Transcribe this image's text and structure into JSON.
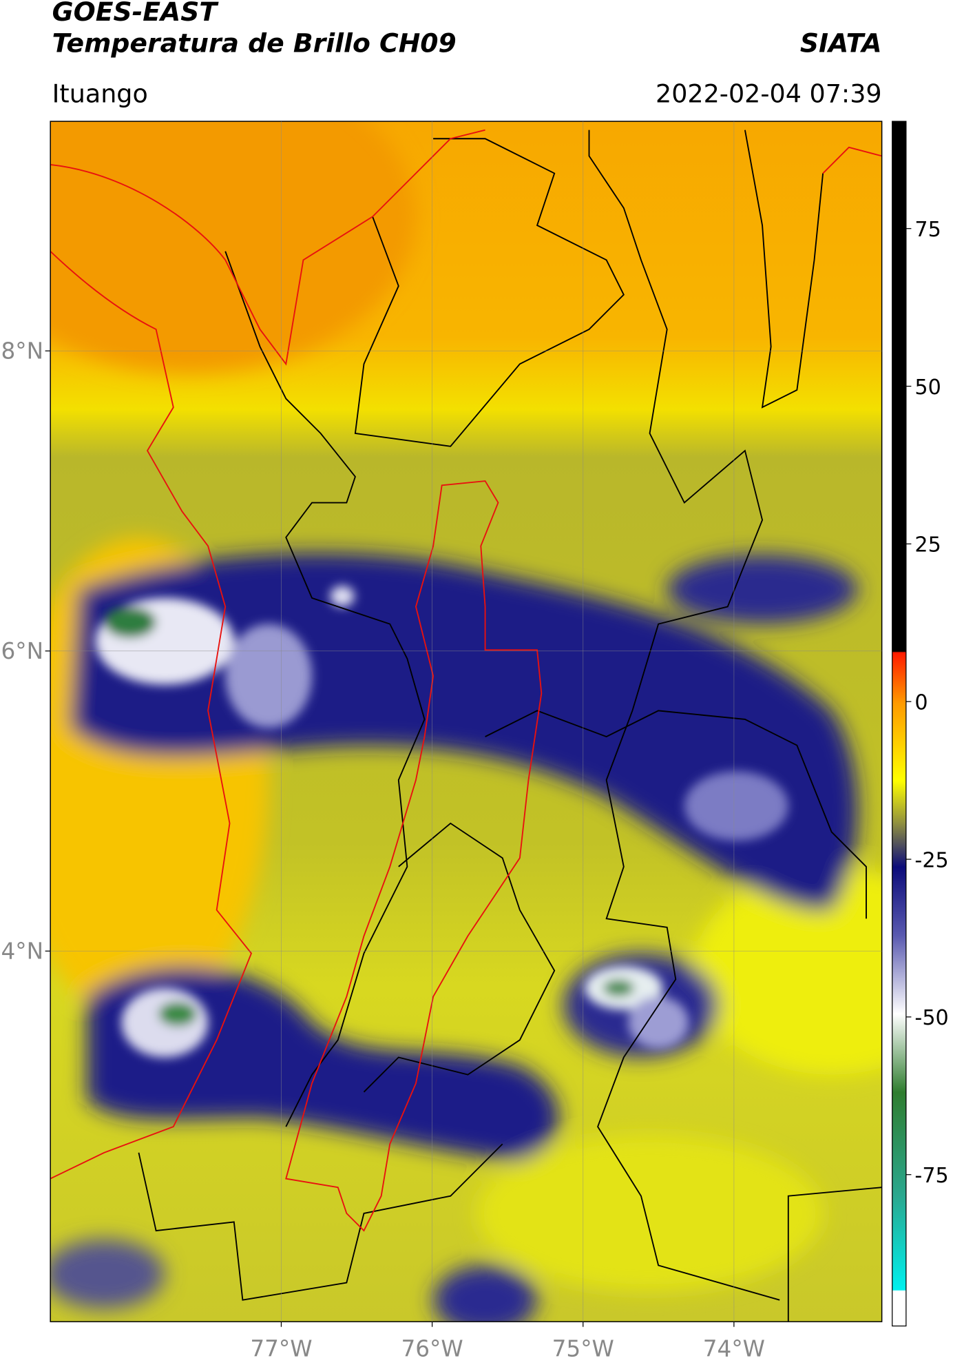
{
  "chart_data": {
    "type": "map",
    "title": "GOES-EAST",
    "subtitle": "Temperatura de Brillo CH09",
    "source": "SIATA",
    "location": "Ituango",
    "datetime": "2022-02-04 07:39",
    "xlim": [
      -78.53,
      -73.02
    ],
    "ylim": [
      1.53,
      9.53
    ],
    "xticks": [
      {
        "value": -77,
        "label": "77°W"
      },
      {
        "value": -76,
        "label": "76°W"
      },
      {
        "value": -75,
        "label": "75°W"
      },
      {
        "value": -74,
        "label": "74°W"
      }
    ],
    "yticks": [
      {
        "value": 8,
        "label": "8°N"
      },
      {
        "value": 6,
        "label": "6°N"
      },
      {
        "value": 4,
        "label": "4°N"
      }
    ],
    "grid": true,
    "colorbar": {
      "lim": [
        -99,
        92
      ],
      "ticks": [
        75,
        50,
        25,
        0,
        -25,
        -50,
        -75
      ]
    }
  }
}
